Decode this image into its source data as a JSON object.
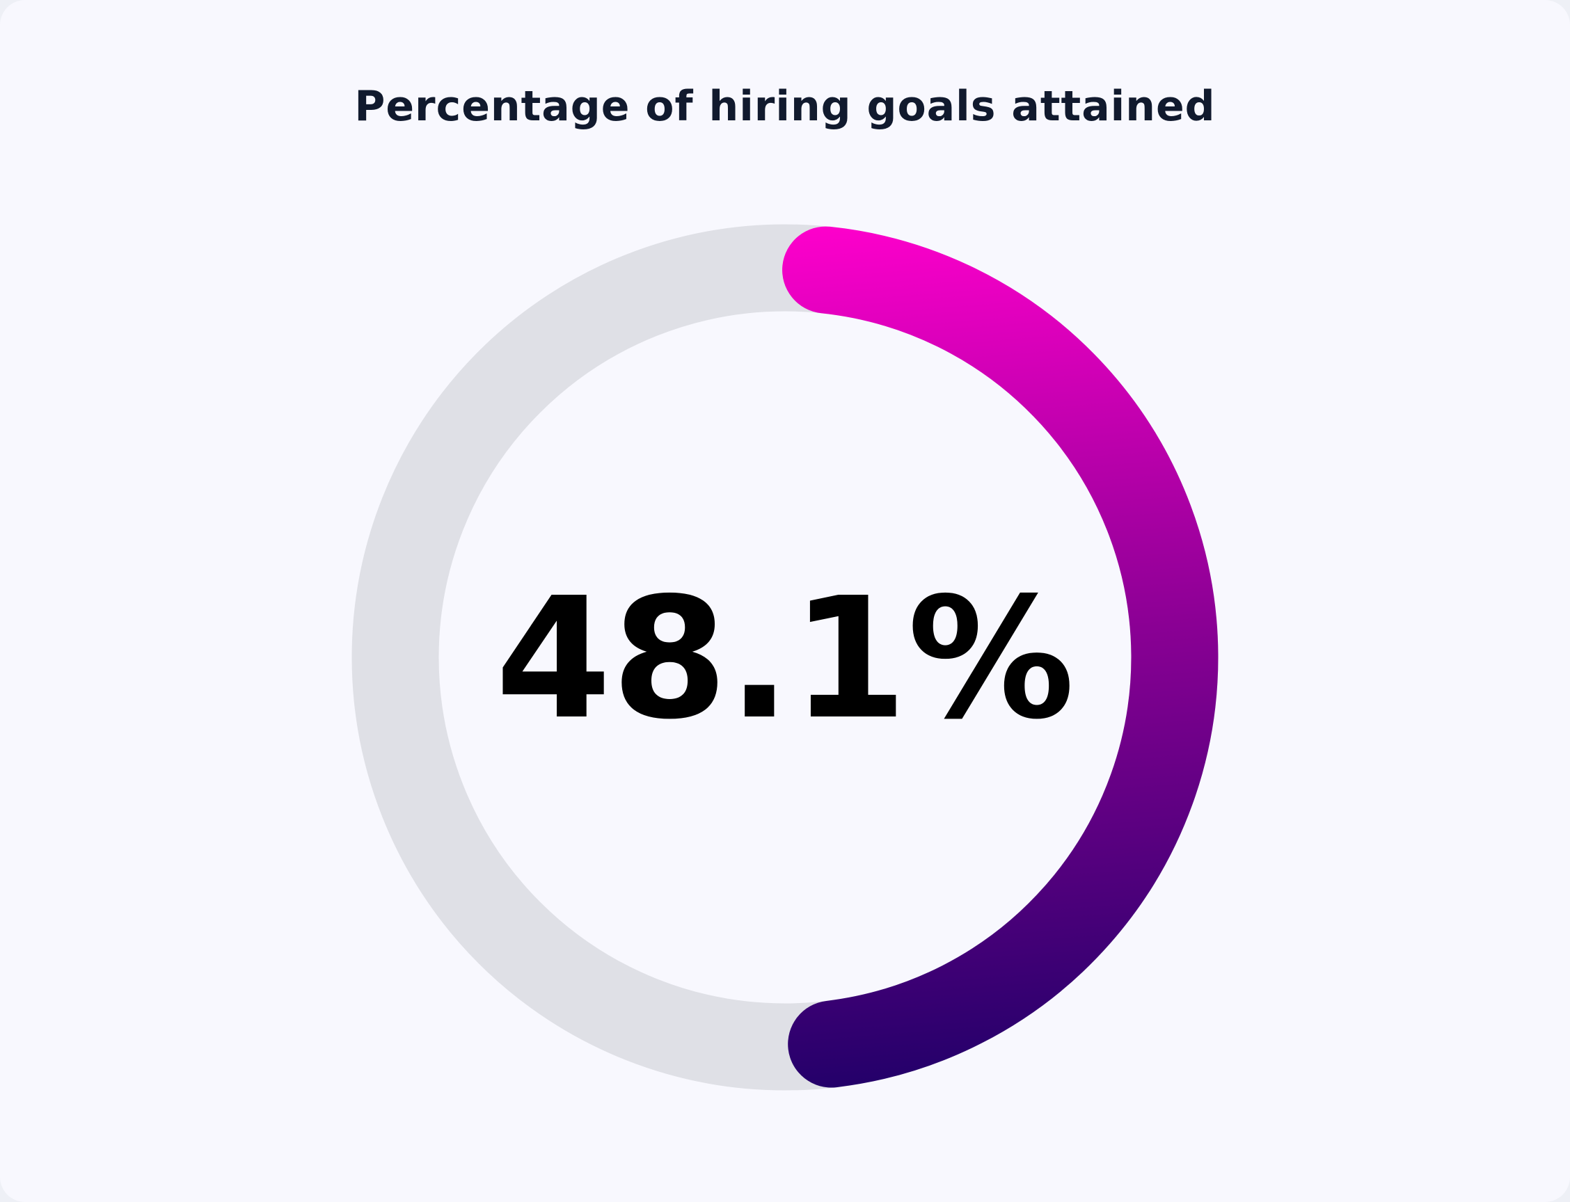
{
  "chart_data": {
    "type": "donut",
    "title": "Percentage of hiring goals attained",
    "value": 48.1,
    "max": 100,
    "value_label": "48.1%",
    "colors": {
      "track": "#dfe0e6",
      "gradient_start": "#ff00cc",
      "gradient_mid": "#8a0094",
      "gradient_end": "#24006a",
      "label": "#000000",
      "title": "#111a2e",
      "background": "#f8f8fe"
    }
  }
}
